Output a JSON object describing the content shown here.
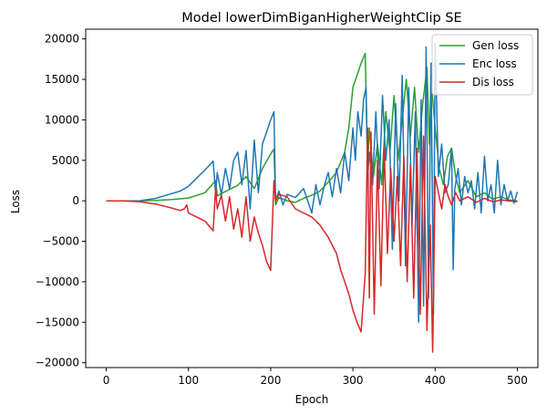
{
  "chart_data": {
    "type": "line",
    "title": "Model lowerDimBiganHigherWeightClip SE",
    "xlabel": "Epoch",
    "ylabel": "Loss",
    "xlim": [
      -25,
      525
    ],
    "ylim": [
      -20600,
      21200
    ],
    "xticks": [
      0,
      100,
      200,
      300,
      400,
      500
    ],
    "yticks": [
      -20000,
      -15000,
      -10000,
      -5000,
      0,
      5000,
      10000,
      15000,
      20000
    ],
    "ytick_labels": [
      "−20000",
      "−15000",
      "−10000",
      "−5000",
      "0",
      "5000",
      "10000",
      "15000",
      "20000"
    ],
    "grid": false,
    "legend_position": "top-right",
    "series": [
      {
        "name": "Gen loss",
        "color": "#2ca02c",
        "x": [
          0,
          20,
          40,
          60,
          80,
          100,
          120,
          133,
          135,
          140,
          150,
          160,
          170,
          180,
          190,
          200,
          204,
          206,
          210,
          220,
          230,
          240,
          250,
          260,
          270,
          280,
          290,
          295,
          300,
          305,
          310,
          315,
          318,
          320,
          325,
          330,
          335,
          340,
          345,
          350,
          355,
          360,
          365,
          370,
          375,
          380,
          385,
          390,
          393,
          395,
          400,
          405,
          410,
          415,
          420,
          425,
          430,
          440,
          450,
          460,
          470,
          480,
          490,
          500
        ],
        "y": [
          0,
          0,
          0,
          50,
          150,
          350,
          1000,
          2500,
          600,
          900,
          1400,
          1900,
          3000,
          1500,
          4000,
          5800,
          6400,
          -500,
          400,
          0,
          -200,
          300,
          700,
          1200,
          2300,
          3500,
          6000,
          9000,
          14000,
          15500,
          17000,
          18200,
          4000,
          9000,
          3000,
          7000,
          2000,
          11000,
          6000,
          13000,
          5000,
          10000,
          15000,
          8000,
          14000,
          6000,
          12000,
          16500,
          7000,
          15000,
          9000,
          4000,
          2000,
          5500,
          6500,
          3000,
          1000,
          2500,
          500,
          1000,
          200,
          500,
          100,
          0
        ]
      },
      {
        "name": "Enc loss",
        "color": "#1f77b4",
        "x": [
          0,
          20,
          40,
          60,
          70,
          80,
          90,
          100,
          110,
          120,
          130,
          133,
          135,
          140,
          145,
          150,
          155,
          160,
          165,
          170,
          175,
          180,
          185,
          190,
          195,
          200,
          204,
          206,
          210,
          215,
          220,
          230,
          240,
          250,
          255,
          260,
          265,
          270,
          275,
          280,
          285,
          290,
          295,
          300,
          303,
          306,
          310,
          313,
          316,
          318,
          320,
          324,
          328,
          332,
          336,
          340,
          344,
          348,
          352,
          356,
          360,
          364,
          368,
          372,
          376,
          380,
          383,
          386,
          389,
          392,
          395,
          398,
          400,
          404,
          408,
          412,
          416,
          420,
          422,
          424,
          428,
          432,
          436,
          440,
          444,
          448,
          452,
          456,
          460,
          464,
          468,
          472,
          476,
          480,
          484,
          488,
          492,
          496,
          500
        ],
        "y": [
          0,
          0,
          0,
          300,
          600,
          900,
          1200,
          1800,
          2800,
          3800,
          4900,
          1000,
          3500,
          800,
          4000,
          1500,
          5000,
          6000,
          2000,
          6200,
          -1000,
          7500,
          1000,
          7000,
          8500,
          10000,
          11000,
          0,
          1200,
          -500,
          800,
          400,
          1500,
          -1500,
          2000,
          -500,
          1800,
          3500,
          500,
          4000,
          1000,
          6000,
          2500,
          9000,
          5000,
          11000,
          8000,
          12500,
          14000,
          3000,
          6000,
          2000,
          11000,
          1500,
          13000,
          5000,
          10000,
          -6000,
          12000,
          0,
          15500,
          -8000,
          14000,
          -3000,
          11000,
          -15000,
          12500,
          -13000,
          19000,
          -12000,
          17000,
          -14000,
          19500,
          3000,
          7000,
          1000,
          2000,
          6500,
          -8500,
          1500,
          4000,
          -500,
          3000,
          1000,
          2500,
          -1000,
          3500,
          -1500,
          5500,
          0,
          2000,
          -1500,
          5000,
          -500,
          2000,
          0,
          1200,
          -300,
          1100
        ]
      },
      {
        "name": "Dis loss",
        "color": "#d62728",
        "x": [
          0,
          20,
          40,
          60,
          80,
          90,
          95,
          98,
          100,
          110,
          120,
          130,
          133,
          135,
          140,
          145,
          150,
          155,
          160,
          165,
          170,
          175,
          180,
          185,
          190,
          195,
          200,
          204,
          206,
          210,
          220,
          230,
          240,
          250,
          260,
          270,
          280,
          285,
          290,
          295,
          300,
          305,
          310,
          315,
          318,
          320,
          322,
          326,
          330,
          334,
          338,
          342,
          346,
          350,
          354,
          358,
          362,
          366,
          370,
          374,
          378,
          382,
          386,
          390,
          394,
          397,
          400,
          404,
          408,
          412,
          416,
          420,
          425,
          430,
          440,
          450,
          460,
          470,
          480,
          490,
          500
        ],
        "y": [
          0,
          0,
          -100,
          -400,
          -900,
          -1200,
          -1000,
          -500,
          -1500,
          -2000,
          -2500,
          -3700,
          1500,
          -1000,
          700,
          -2500,
          500,
          -3500,
          -1000,
          -4500,
          500,
          -5000,
          -2000,
          -4000,
          -5500,
          -7500,
          -8600,
          2500,
          0,
          800,
          500,
          -1000,
          -1500,
          -2000,
          -3000,
          -4500,
          -6500,
          -8500,
          -10000,
          -11500,
          -13500,
          -15000,
          -16200,
          -9000,
          9000,
          -12000,
          8500,
          -14000,
          5000,
          -10500,
          6500,
          -6500,
          4000,
          -5000,
          3000,
          -8000,
          5500,
          -10000,
          4500,
          -12000,
          6500,
          -14000,
          8000,
          -16000,
          -3000,
          -18700,
          3000,
          1000,
          -1000,
          2000,
          500,
          -500,
          1000,
          0,
          500,
          -200,
          300,
          -100,
          100,
          0,
          -100
        ]
      }
    ]
  }
}
